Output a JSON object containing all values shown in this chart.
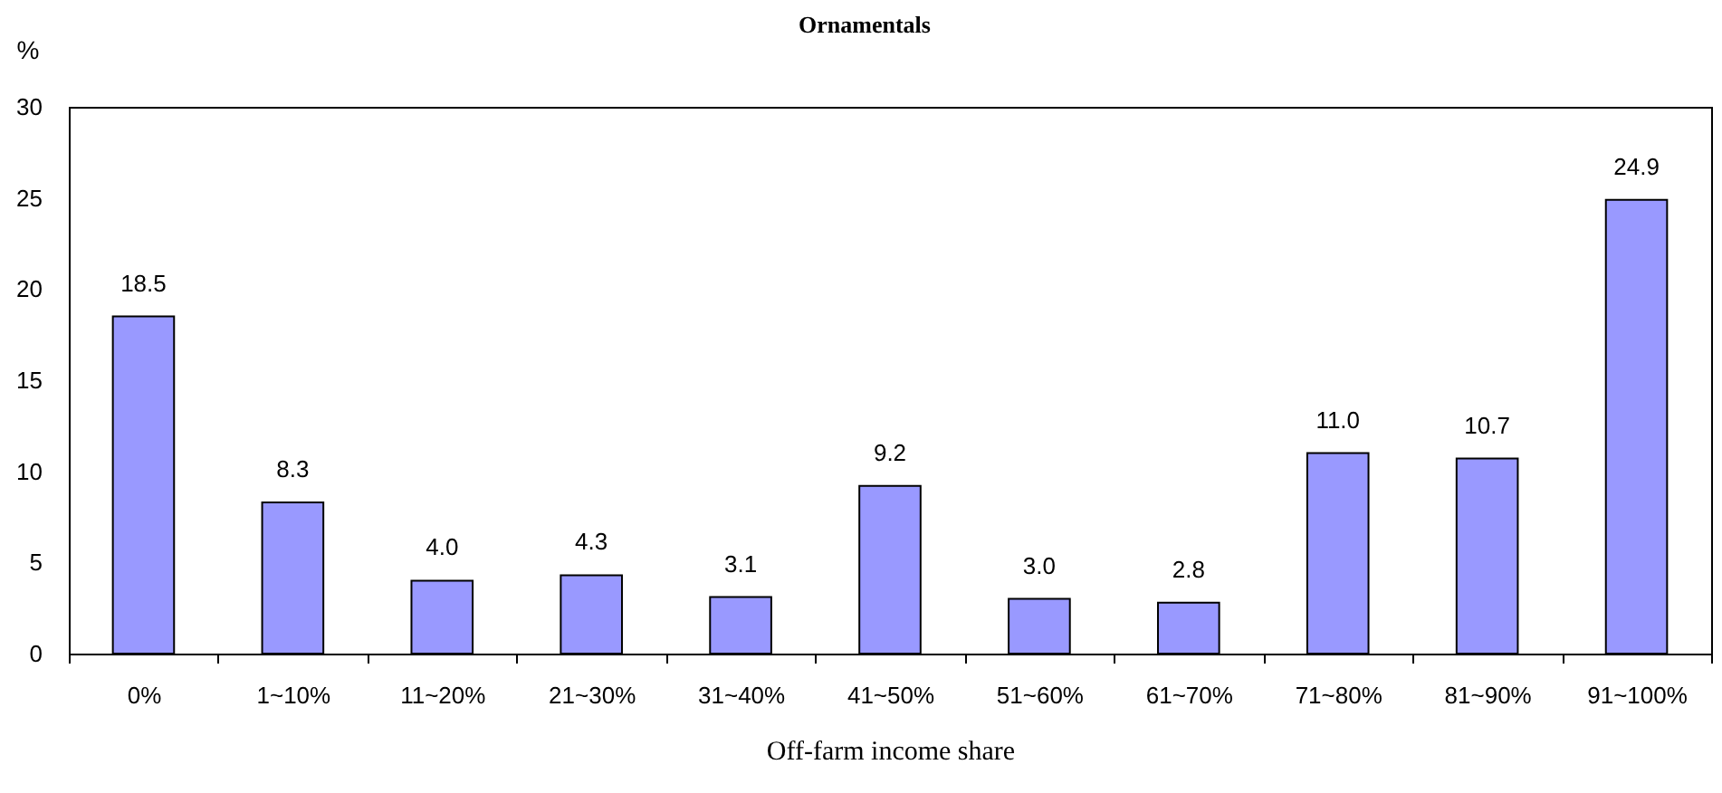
{
  "chart_data": {
    "type": "bar",
    "title": "Ornamentals",
    "xlabel": "Off-farm income share",
    "ylabel": "%",
    "categories": [
      "0%",
      "1~10%",
      "11~20%",
      "21~30%",
      "31~40%",
      "41~50%",
      "51~60%",
      "61~70%",
      "71~80%",
      "81~90%",
      "91~100%"
    ],
    "values": [
      18.5,
      8.3,
      4.0,
      4.3,
      3.1,
      9.2,
      3.0,
      2.8,
      11.0,
      10.7,
      24.9
    ],
    "value_labels": [
      "18.5",
      "8.3",
      "4.0",
      "4.3",
      "3.1",
      "9.2",
      "3.0",
      "2.8",
      "11.0",
      "10.7",
      "24.9"
    ],
    "color": "#9999ff",
    "ylim": [
      0,
      30
    ],
    "yticks": [
      0,
      5,
      10,
      15,
      20,
      25,
      30
    ],
    "grid": false
  }
}
